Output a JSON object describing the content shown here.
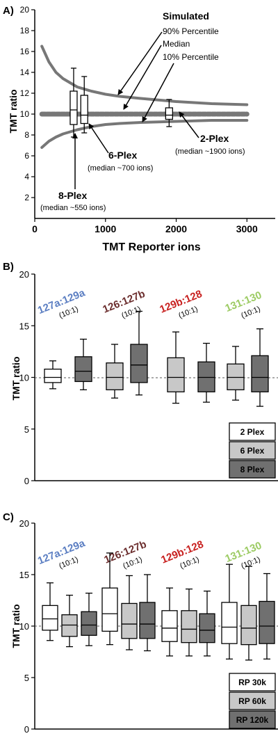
{
  "figure": {
    "page_width": 400,
    "page_height": 1058
  },
  "chart_data": [
    {
      "panel": "A)",
      "type": "line",
      "ylabel": "TMT ratio",
      "xlabel": "TMT Reporter ions",
      "xlim": [
        0,
        3400
      ],
      "ylim": [
        0,
        20
      ],
      "x_ticks": [
        0,
        1000,
        2000,
        3000
      ],
      "y_ticks": [
        2,
        4,
        6,
        8,
        10,
        12,
        14,
        16,
        18,
        20
      ],
      "series": [
        {
          "name": "90% Percentile",
          "x": [
            100,
            200,
            300,
            400,
            500,
            600,
            800,
            1000,
            1200,
            1500,
            2000,
            2500,
            3000
          ],
          "y": [
            16.5,
            15.0,
            14.0,
            13.4,
            13.0,
            12.6,
            12.2,
            11.9,
            11.7,
            11.5,
            11.2,
            11.0,
            10.9
          ]
        },
        {
          "name": "Median",
          "x": [
            100,
            500,
            1000,
            1500,
            2000,
            2500,
            3000
          ],
          "y": [
            10.0,
            10.0,
            10.0,
            10.0,
            10.0,
            10.0,
            10.0
          ]
        },
        {
          "name": "10% Percentile",
          "x": [
            100,
            200,
            300,
            400,
            500,
            600,
            800,
            1000,
            1200,
            1500,
            2000,
            2500,
            3000
          ],
          "y": [
            6.8,
            7.4,
            7.8,
            8.1,
            8.3,
            8.5,
            8.8,
            9.0,
            9.1,
            9.2,
            9.3,
            9.4,
            9.4
          ]
        }
      ],
      "boxes": [
        {
          "x": 550,
          "min": 7.8,
          "q1": 9.0,
          "median": 10.4,
          "q3": 12.2,
          "max": 14.4
        },
        {
          "x": 700,
          "min": 8.2,
          "q1": 9.1,
          "median": 9.9,
          "q3": 11.8,
          "max": 13.6
        },
        {
          "x": 1900,
          "min": 8.8,
          "q1": 9.5,
          "median": 9.9,
          "q3": 10.6,
          "max": 11.4
        }
      ],
      "annotations": {
        "simulated": "Simulated",
        "p90": "90% Percentile",
        "median": "Median",
        "p10": "10% Percentile",
        "plex2": "2-Plex",
        "plex2_sub": "(median ~1900 ions)",
        "plex6": "6-Plex",
        "plex6_sub": "(median ~700 ions)",
        "plex8": "8-Plex",
        "plex8_sub": "(median ~550 ions)"
      }
    },
    {
      "panel": "B)",
      "type": "box",
      "ylabel": "TMT ratio",
      "ylim": [
        0,
        20
      ],
      "y_ticks": [
        0,
        5,
        10,
        15,
        20
      ],
      "reference_line": 10,
      "categories": [
        {
          "label": "127a:129a",
          "sub": "(10:1)",
          "color": "#5b7ec2"
        },
        {
          "label": "126:127b",
          "sub": "(10:1)",
          "color": "#6b2d2d"
        },
        {
          "label": "129b:128",
          "sub": "(10:1)",
          "color": "#c8201f"
        },
        {
          "label": "131:130",
          "sub": "(10:1)",
          "color": "#9ccb63"
        }
      ],
      "series": [
        {
          "name": "2 Plex",
          "fill": "#ffffff",
          "boxes": [
            {
              "min": 8.9,
              "q1": 9.5,
              "median": 10.0,
              "q3": 10.8,
              "max": 11.6
            }
          ]
        },
        {
          "name": "6 Plex",
          "fill": "#c8c8c8",
          "boxes": [
            null,
            {
              "min": 8.0,
              "q1": 8.8,
              "median": 10.0,
              "q3": 11.4,
              "max": 13.2
            },
            {
              "min": 7.5,
              "q1": 8.6,
              "median": 10.0,
              "q3": 11.9,
              "max": 14.4
            },
            {
              "min": 7.8,
              "q1": 8.8,
              "median": 10.0,
              "q3": 11.3,
              "max": 13.0
            }
          ]
        },
        {
          "name": "8 Plex",
          "fill": "#707070",
          "boxes": [
            {
              "min": 8.8,
              "q1": 9.6,
              "median": 10.6,
              "q3": 12.0,
              "max": 13.7
            },
            {
              "min": 8.3,
              "q1": 9.5,
              "median": 11.2,
              "q3": 13.2,
              "max": 16.4
            },
            {
              "min": 7.6,
              "q1": 8.6,
              "median": 10.0,
              "q3": 11.5,
              "max": 13.3
            },
            {
              "min": 7.2,
              "q1": 8.6,
              "median": 10.0,
              "q3": 12.1,
              "max": 14.7
            }
          ]
        }
      ],
      "legend_position": "bottom-right"
    },
    {
      "panel": "C)",
      "type": "box",
      "ylabel": "TMT ratio",
      "ylim": [
        0,
        20
      ],
      "y_ticks": [
        0,
        5,
        10,
        15,
        20
      ],
      "reference_line": 10,
      "categories": [
        {
          "label": "127a:129a",
          "sub": "(10:1)",
          "color": "#5b7ec2"
        },
        {
          "label": "126:127b",
          "sub": "(10:1)",
          "color": "#6b2d2d"
        },
        {
          "label": "129b:128",
          "sub": "(10:1)",
          "color": "#c8201f"
        },
        {
          "label": "131:130",
          "sub": "(10:1)",
          "color": "#9ccb63"
        }
      ],
      "series": [
        {
          "name": "RP 30k",
          "fill": "#ffffff",
          "boxes": [
            {
              "min": 8.6,
              "q1": 9.6,
              "median": 10.7,
              "q3": 12.0,
              "max": 14.2
            },
            {
              "min": 8.2,
              "q1": 9.5,
              "median": 11.2,
              "q3": 13.7,
              "max": 17.1
            },
            {
              "min": 7.1,
              "q1": 8.5,
              "median": 9.8,
              "q3": 11.5,
              "max": 13.7
            },
            {
              "min": 6.8,
              "q1": 8.3,
              "median": 9.9,
              "q3": 12.3,
              "max": 16.0
            }
          ]
        },
        {
          "name": "RP 60k",
          "fill": "#c8c8c8",
          "boxes": [
            {
              "min": 8.0,
              "q1": 9.0,
              "median": 10.1,
              "q3": 11.1,
              "max": 13.0
            },
            {
              "min": 7.7,
              "q1": 8.8,
              "median": 10.2,
              "q3": 12.2,
              "max": 14.9
            },
            {
              "min": 7.1,
              "q1": 8.4,
              "median": 9.7,
              "q3": 11.5,
              "max": 13.6
            },
            {
              "min": 6.7,
              "q1": 8.2,
              "median": 9.8,
              "q3": 12.0,
              "max": 15.8
            }
          ]
        },
        {
          "name": "RP 120k",
          "fill": "#707070",
          "boxes": [
            {
              "min": 8.1,
              "q1": 9.1,
              "median": 10.1,
              "q3": 11.4,
              "max": 13.2
            },
            {
              "min": 7.6,
              "q1": 8.8,
              "median": 10.2,
              "q3": 12.3,
              "max": 15.0
            },
            {
              "min": 7.1,
              "q1": 8.4,
              "median": 9.6,
              "q3": 11.2,
              "max": 13.4
            },
            {
              "min": 6.8,
              "q1": 8.3,
              "median": 10.0,
              "q3": 12.4,
              "max": 15.1
            }
          ]
        }
      ],
      "legend_position": "bottom-right"
    }
  ]
}
